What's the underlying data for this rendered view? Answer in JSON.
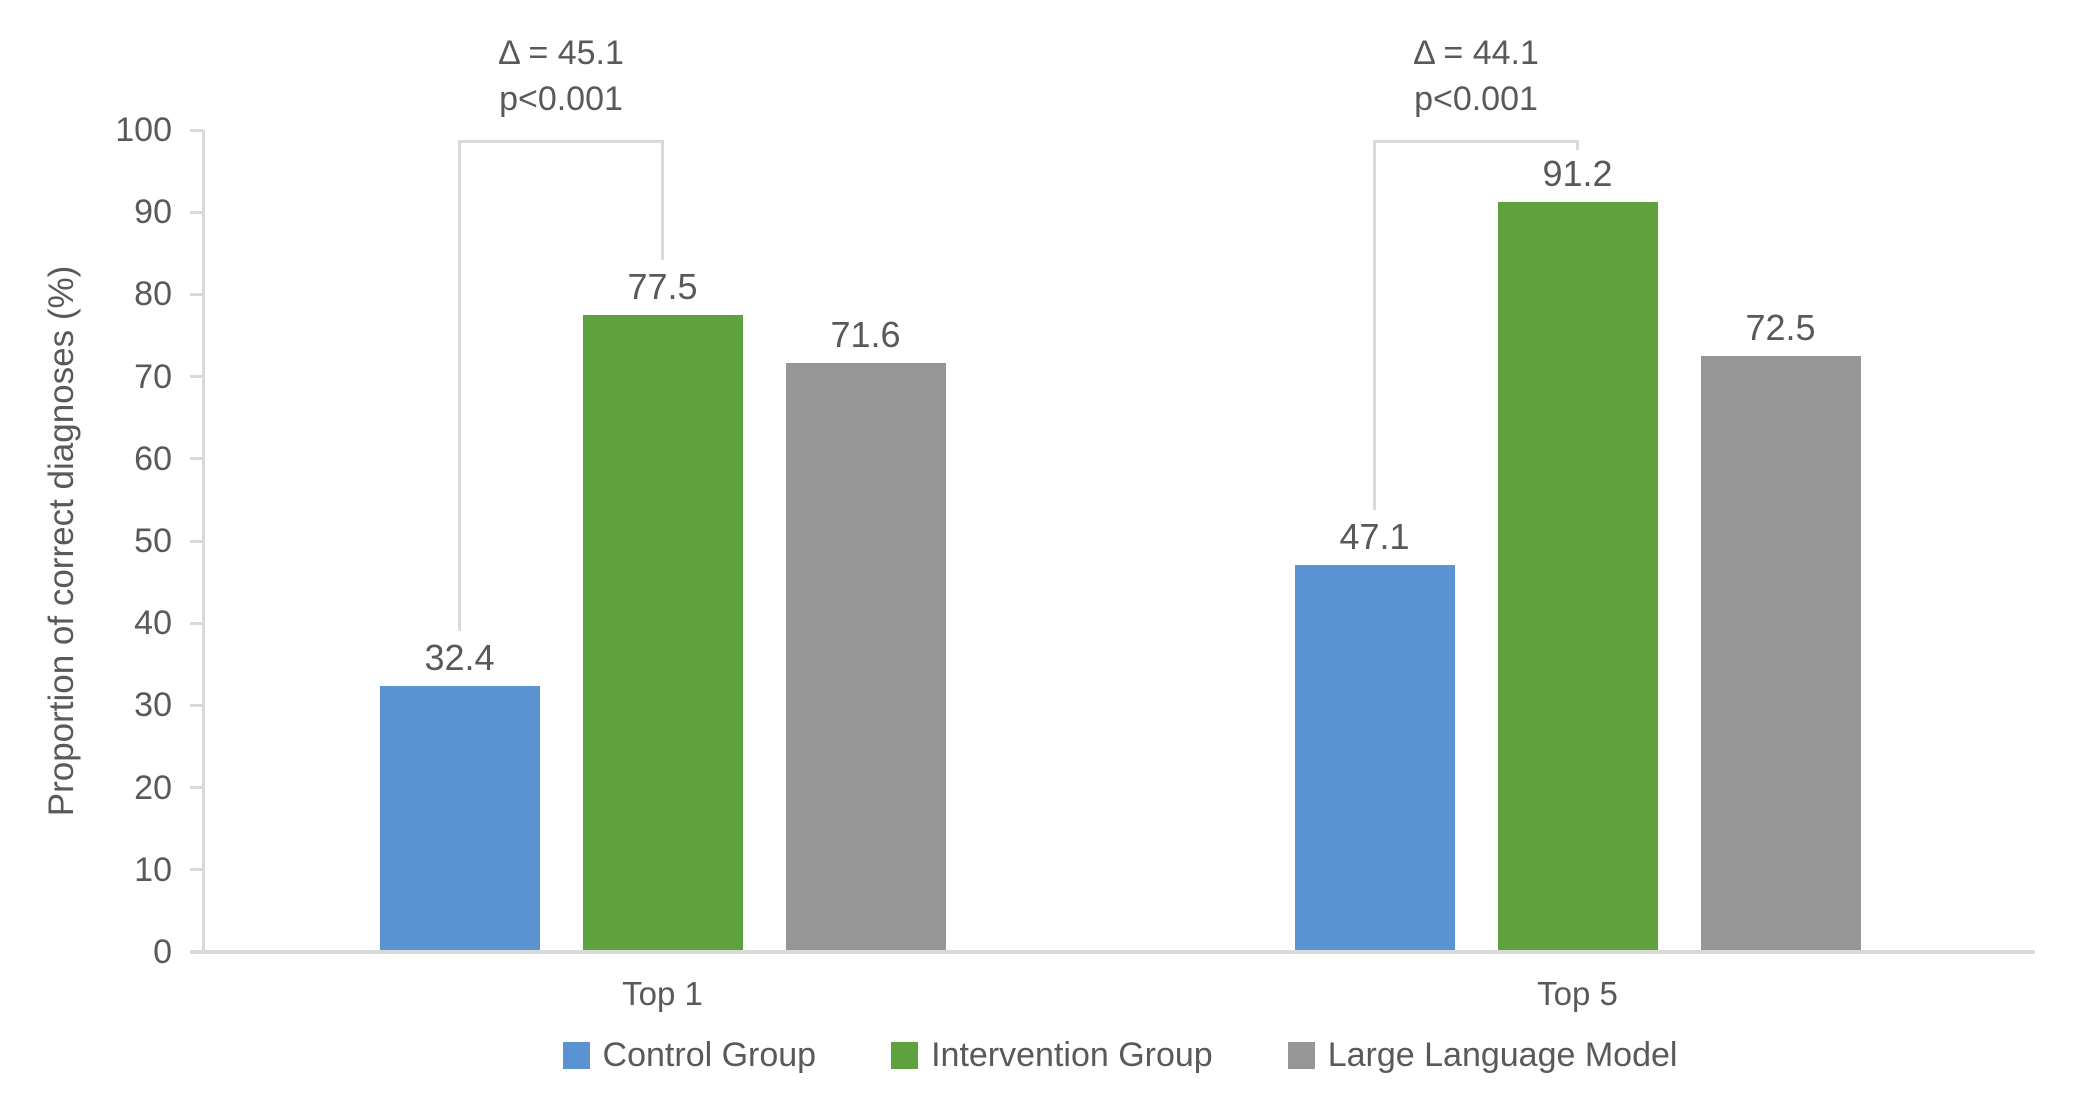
{
  "chart_data": {
    "type": "bar",
    "title": "",
    "ylabel": "Proportion of correct diagnoses (%)",
    "ylim": [
      0,
      100
    ],
    "yticks": [
      0,
      10,
      20,
      30,
      40,
      50,
      60,
      70,
      80,
      90,
      100
    ],
    "categories": [
      "Top 1",
      "Top 5"
    ],
    "series": [
      {
        "name": "Control Group",
        "color": "#5B92D2",
        "values": [
          32.4,
          47.1
        ]
      },
      {
        "name": "Intervention Group",
        "color": "#5FA23D",
        "values": [
          77.5,
          91.2
        ]
      },
      {
        "name": "Large Language Model",
        "color": "#969696",
        "values": [
          71.6,
          72.5
        ]
      }
    ],
    "annotations": [
      {
        "category": "Top 1",
        "from_series": "Control Group",
        "to_series": "Intervention Group",
        "lines": [
          "Δ = 45.1",
          "p<0.001"
        ]
      },
      {
        "category": "Top 5",
        "from_series": "Control Group",
        "to_series": "Intervention Group",
        "lines": [
          "Δ = 44.1",
          "p<0.001"
        ]
      }
    ],
    "legend_position": "bottom",
    "grid": false,
    "value_labels_shown": true,
    "colors": {
      "text": "#595959",
      "axis": "#D9D9D9",
      "background": "#FFFFFF"
    }
  }
}
